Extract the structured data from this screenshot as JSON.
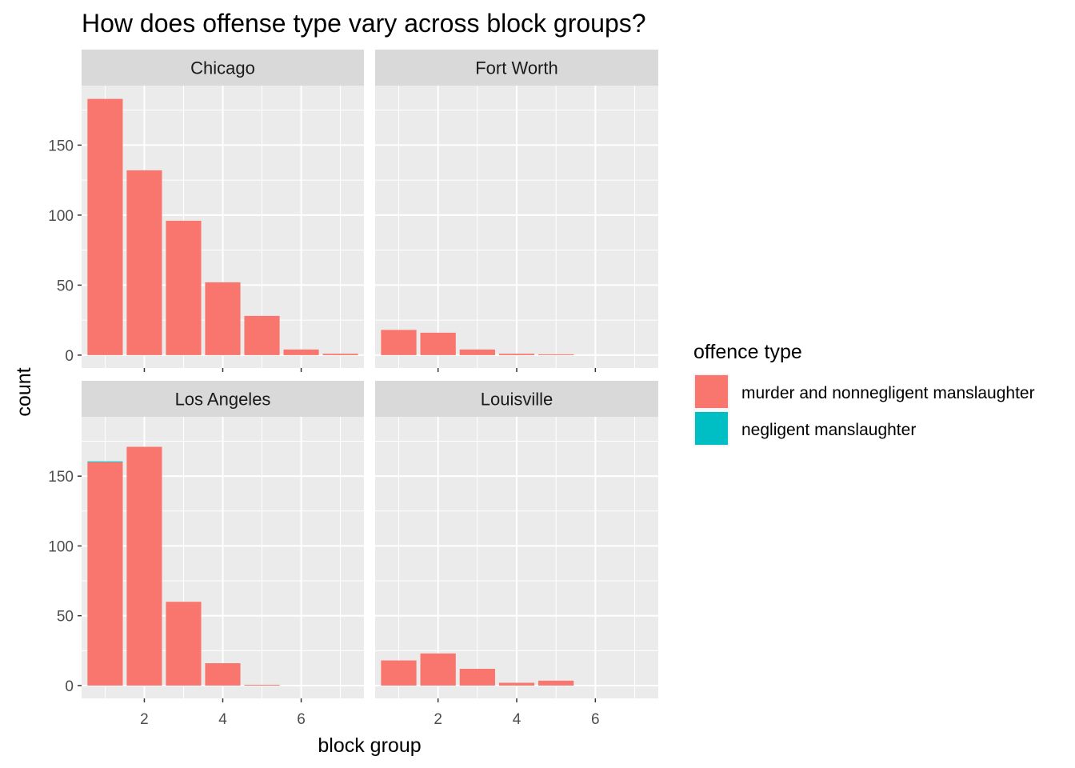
{
  "chart_data": {
    "type": "bar",
    "title": "How does offense type vary across block groups?",
    "xlabel": "block group",
    "ylabel": "count",
    "xlim": [
      0.4,
      7.6
    ],
    "ylim": [
      -9.2,
      192.5
    ],
    "x_ticks": [
      2,
      4,
      6
    ],
    "y_ticks": [
      0,
      50,
      100,
      150
    ],
    "grid": true,
    "legend": {
      "title": "offence type",
      "position": "right",
      "entries": [
        {
          "label": "murder and nonnegligent manslaughter",
          "color": "#F8766D"
        },
        {
          "label": "negligent manslaughter",
          "color": "#00BFC4"
        }
      ]
    },
    "facet_layout": {
      "rows": 2,
      "cols": 2
    },
    "panels": [
      {
        "name": "Chicago",
        "x": [
          1,
          2,
          3,
          4,
          5,
          6,
          7
        ],
        "series": [
          {
            "label": "murder and nonnegligent manslaughter",
            "color": "#F8766D",
            "values": [
              183,
              132,
              96,
              52,
              28,
              4,
              1
            ]
          },
          {
            "label": "negligent manslaughter",
            "color": "#00BFC4",
            "values": [
              0,
              0,
              0,
              0,
              0,
              0,
              0
            ]
          }
        ]
      },
      {
        "name": "Fort Worth",
        "x": [
          1,
          2,
          3,
          4,
          5,
          6,
          7
        ],
        "series": [
          {
            "label": "murder and nonnegligent manslaughter",
            "color": "#F8766D",
            "values": [
              18,
              16,
              4,
              1,
              0.5,
              0,
              0
            ]
          },
          {
            "label": "negligent manslaughter",
            "color": "#00BFC4",
            "values": [
              0,
              0,
              0,
              0,
              0,
              0,
              0
            ]
          }
        ]
      },
      {
        "name": "Los Angeles",
        "x": [
          1,
          2,
          3,
          4,
          5,
          6,
          7
        ],
        "series": [
          {
            "label": "murder and nonnegligent manslaughter",
            "color": "#F8766D",
            "values": [
              160,
              171,
              60,
              16,
              0.5,
              0,
              0
            ]
          },
          {
            "label": "negligent manslaughter",
            "color": "#00BFC4",
            "values": [
              0.5,
              0,
              0,
              0,
              0,
              0,
              0
            ]
          }
        ]
      },
      {
        "name": "Louisville",
        "x": [
          1,
          2,
          3,
          4,
          5,
          6,
          7
        ],
        "series": [
          {
            "label": "murder and nonnegligent manslaughter",
            "color": "#F8766D",
            "values": [
              18,
              23,
              12,
              2,
              3.5,
              0,
              0
            ]
          },
          {
            "label": "negligent manslaughter",
            "color": "#00BFC4",
            "values": [
              0,
              0,
              0,
              0,
              0,
              0,
              0
            ]
          }
        ]
      }
    ],
    "colors": {
      "panel_bg": "#EBEBEB",
      "strip_bg": "#D9D9D9",
      "grid": "#FFFFFF"
    }
  }
}
